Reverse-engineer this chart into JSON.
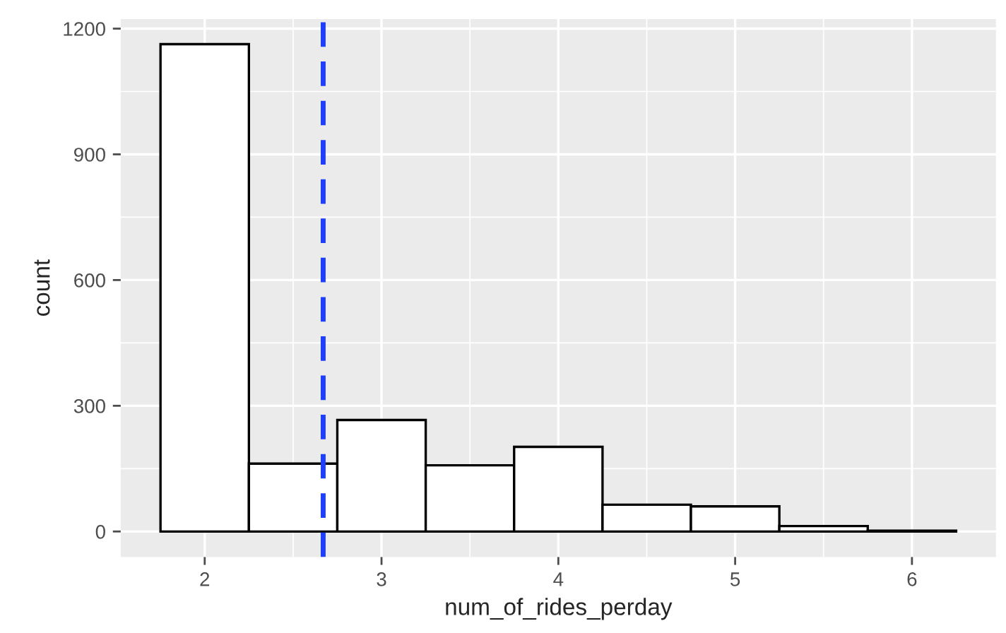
{
  "chart_data": {
    "type": "histogram",
    "xlabel": "num_of_rides_perday",
    "ylabel": "count",
    "bins": [
      1.75,
      2.25,
      2.75,
      3.25,
      3.75,
      4.25,
      4.75,
      5.25,
      5.75,
      6.25
    ],
    "values": [
      1163,
      162,
      266,
      158,
      202,
      64,
      60,
      13,
      2
    ],
    "color": "#ffffff",
    "xlim": [
      1.525,
      6.475
    ],
    "xticks": [
      2,
      3,
      4,
      5,
      6
    ],
    "ylim": [
      -61,
      1223
    ],
    "yticks": [
      0,
      300,
      600,
      900,
      1200
    ],
    "ref_lines": [
      {
        "axis": "x",
        "value": 2.67,
        "color": "#1f3fff",
        "line_style": "dashed"
      }
    ],
    "grid": true
  }
}
